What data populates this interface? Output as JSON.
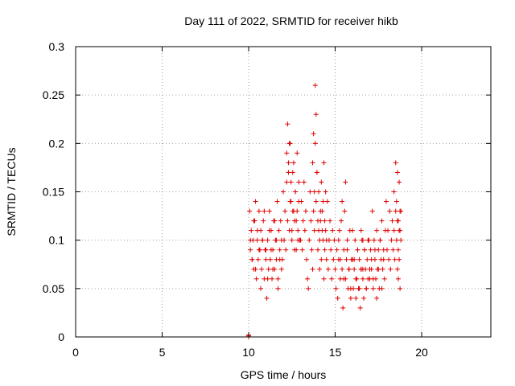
{
  "chart_data": {
    "type": "scatter",
    "title": "Day 111 of 2022, SRMTID for receiver hikb",
    "xlabel": "GPS time / hours",
    "ylabel": "SRMTID / TECUs",
    "xlim": [
      0,
      24
    ],
    "ylim": [
      0,
      0.3
    ],
    "xticks": [
      0,
      5,
      10,
      15,
      20
    ],
    "xtick_labels": [
      "0",
      "5",
      "10",
      "15",
      "20"
    ],
    "yticks": [
      0,
      0.05,
      0.1,
      0.15,
      0.2,
      0.25,
      0.3
    ],
    "ytick_labels": [
      "0",
      "0.05",
      "0.1",
      "0.15",
      "0.2",
      "0.25",
      "0.3"
    ],
    "grid": true,
    "marker": "+",
    "series": [
      {
        "name": "SRMTID",
        "color": "#e00000",
        "x": [
          10.0,
          10.0,
          10.0,
          10.0,
          10.05,
          10.1,
          10.15,
          10.2,
          10.25,
          10.3,
          10.35,
          10.4,
          10.45,
          10.5,
          10.55,
          10.6,
          10.65,
          10.7,
          10.75,
          10.8,
          10.85,
          10.9,
          10.95,
          10.1,
          10.2,
          10.3,
          10.4,
          10.5,
          10.6,
          10.7,
          10.8,
          10.9,
          11.0,
          11.1,
          11.2,
          11.3,
          11.4,
          11.5,
          11.6,
          11.7,
          11.8,
          11.9,
          11.0,
          11.05,
          11.1,
          11.15,
          11.2,
          11.25,
          11.3,
          11.35,
          11.4,
          11.45,
          11.5,
          11.55,
          11.6,
          11.65,
          11.7,
          11.75,
          11.8,
          11.85,
          11.9,
          11.95,
          12.0,
          12.05,
          12.1,
          12.15,
          12.2,
          12.25,
          12.3,
          12.35,
          12.4,
          12.45,
          12.5,
          12.55,
          12.6,
          12.65,
          12.7,
          12.75,
          12.8,
          12.85,
          12.9,
          12.95,
          12.2,
          12.25,
          12.3,
          12.35,
          12.4,
          12.45,
          12.5,
          12.55,
          12.6,
          12.65,
          12.7,
          12.75,
          12.8,
          12.85,
          12.9,
          13.0,
          13.05,
          13.1,
          13.15,
          13.2,
          13.25,
          13.3,
          13.35,
          13.4,
          13.45,
          13.5,
          13.55,
          13.6,
          13.65,
          13.7,
          13.75,
          13.8,
          13.85,
          13.9,
          13.95,
          13.7,
          13.75,
          13.8,
          13.85,
          13.9,
          13.95,
          14.0,
          14.05,
          14.1,
          14.15,
          14.2,
          14.25,
          14.3,
          14.35,
          14.4,
          14.45,
          14.5,
          14.0,
          14.05,
          14.1,
          14.15,
          14.2,
          14.25,
          14.3,
          14.35,
          14.4,
          14.45,
          14.5,
          14.55,
          14.6,
          14.65,
          14.7,
          14.75,
          14.8,
          14.85,
          14.9,
          14.95,
          15.0,
          15.05,
          15.1,
          15.15,
          15.2,
          15.25,
          15.3,
          15.35,
          15.4,
          15.45,
          15.5,
          15.55,
          15.6,
          15.65,
          15.7,
          15.75,
          15.8,
          15.85,
          15.9,
          15.95,
          15.2,
          15.3,
          15.4,
          15.5,
          15.6,
          15.7,
          15.8,
          15.9,
          16.0,
          16.1,
          16.2,
          16.3,
          16.4,
          16.5,
          16.6,
          16.0,
          16.05,
          16.1,
          16.15,
          16.2,
          16.25,
          16.3,
          16.35,
          16.4,
          16.45,
          16.5,
          16.55,
          16.6,
          16.65,
          16.7,
          16.75,
          16.8,
          16.85,
          16.9,
          16.95,
          16.5,
          16.6,
          16.7,
          16.8,
          16.9,
          17.0,
          17.1,
          17.2,
          17.3,
          17.4,
          17.5,
          17.6,
          17.7,
          17.8,
          17.0,
          17.05,
          17.1,
          17.15,
          17.2,
          17.25,
          17.3,
          17.35,
          17.4,
          17.45,
          17.5,
          17.55,
          17.6,
          17.65,
          17.7,
          17.75,
          17.8,
          17.85,
          17.9,
          17.95,
          18.0,
          18.05,
          18.1,
          18.15,
          18.2,
          18.25,
          18.3,
          18.35,
          18.4,
          18.45,
          18.5,
          18.55,
          18.6,
          18.65,
          18.7,
          18.75,
          18.8,
          18.4,
          18.5,
          18.55,
          18.6,
          18.65,
          18.7,
          18.75,
          18.8,
          18.6,
          18.65,
          18.7,
          18.75
        ],
        "y": [
          0.0,
          0.001,
          0.002,
          0.0,
          0.13,
          0.09,
          0.11,
          0.08,
          0.1,
          0.07,
          0.12,
          0.14,
          0.06,
          0.1,
          0.08,
          0.13,
          0.09,
          0.11,
          0.07,
          0.1,
          0.12,
          0.06,
          0.09,
          0.1,
          0.08,
          0.12,
          0.07,
          0.11,
          0.09,
          0.05,
          0.1,
          0.13,
          0.08,
          0.06,
          0.11,
          0.09,
          0.07,
          0.12,
          0.1,
          0.05,
          0.08,
          0.07,
          0.09,
          0.04,
          0.1,
          0.07,
          0.13,
          0.08,
          0.11,
          0.06,
          0.09,
          0.12,
          0.07,
          0.1,
          0.08,
          0.14,
          0.06,
          0.11,
          0.09,
          0.12,
          0.1,
          0.08,
          0.15,
          0.1,
          0.13,
          0.09,
          0.16,
          0.12,
          0.18,
          0.11,
          0.2,
          0.14,
          0.1,
          0.17,
          0.13,
          0.09,
          0.15,
          0.12,
          0.19,
          0.11,
          0.14,
          0.1,
          0.19,
          0.22,
          0.17,
          0.2,
          0.14,
          0.16,
          0.11,
          0.13,
          0.18,
          0.12,
          0.15,
          0.09,
          0.13,
          0.1,
          0.16,
          0.1,
          0.14,
          0.09,
          0.12,
          0.16,
          0.11,
          0.13,
          0.08,
          0.06,
          0.05,
          0.1,
          0.15,
          0.12,
          0.09,
          0.07,
          0.13,
          0.11,
          0.2,
          0.14,
          0.17,
          0.18,
          0.21,
          0.15,
          0.26,
          0.23,
          0.17,
          0.12,
          0.15,
          0.1,
          0.13,
          0.16,
          0.11,
          0.14,
          0.18,
          0.12,
          0.15,
          0.1,
          0.09,
          0.11,
          0.07,
          0.12,
          0.08,
          0.13,
          0.1,
          0.06,
          0.09,
          0.11,
          0.08,
          0.14,
          0.07,
          0.1,
          0.12,
          0.09,
          0.06,
          0.11,
          0.08,
          0.1,
          0.07,
          0.05,
          0.09,
          0.04,
          0.08,
          0.11,
          0.06,
          0.12,
          0.07,
          0.03,
          0.09,
          0.13,
          0.06,
          0.08,
          0.1,
          0.05,
          0.07,
          0.11,
          0.04,
          0.08,
          0.1,
          0.08,
          0.14,
          0.06,
          0.16,
          0.09,
          0.07,
          0.05,
          0.11,
          0.08,
          0.06,
          0.09,
          0.05,
          0.07,
          0.1,
          0.08,
          0.05,
          0.07,
          0.1,
          0.04,
          0.06,
          0.09,
          0.05,
          0.08,
          0.03,
          0.07,
          0.1,
          0.06,
          0.04,
          0.09,
          0.07,
          0.05,
          0.08,
          0.06,
          0.1,
          0.11,
          0.07,
          0.09,
          0.05,
          0.1,
          0.07,
          0.08,
          0.06,
          0.09,
          0.04,
          0.07,
          0.1,
          0.05,
          0.08,
          0.06,
          0.09,
          0.07,
          0.13,
          0.05,
          0.1,
          0.08,
          0.06,
          0.11,
          0.07,
          0.09,
          0.05,
          0.1,
          0.08,
          0.12,
          0.07,
          0.09,
          0.06,
          0.11,
          0.14,
          0.09,
          0.11,
          0.08,
          0.13,
          0.07,
          0.1,
          0.12,
          0.09,
          0.11,
          0.08,
          0.13,
          0.1,
          0.12,
          0.09,
          0.11,
          0.13,
          0.1,
          0.15,
          0.18,
          0.14,
          0.17,
          0.12,
          0.16,
          0.11,
          0.13,
          0.07,
          0.06,
          0.08,
          0.05
        ]
      }
    ]
  }
}
